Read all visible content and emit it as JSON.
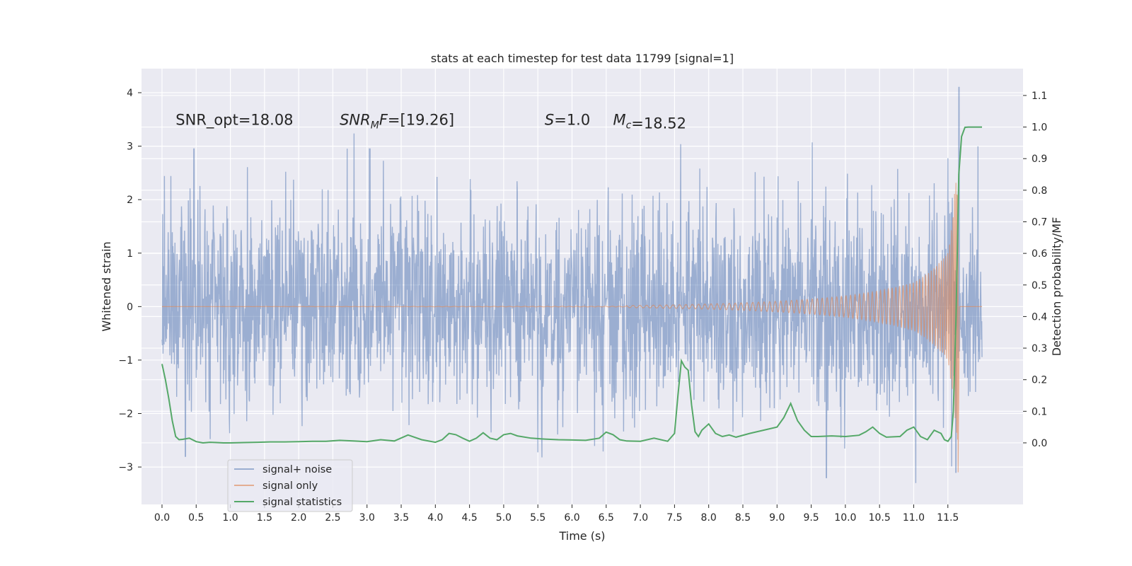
{
  "chart_data": {
    "type": "line",
    "title": "stats at each timestep for test data 11799 [signal=1]",
    "xlabel": "Time (s)",
    "ylabel": "Whitened strain",
    "y2label": "Detection probability/MF",
    "xlim": [
      -0.3,
      12.6
    ],
    "ylim": [
      -3.7,
      4.45
    ],
    "y2lim": [
      -0.195,
      1.185
    ],
    "x_ticks": [
      "0.0",
      "0.5",
      "1.0",
      "1.5",
      "2.0",
      "2.5",
      "3.0",
      "3.5",
      "4.0",
      "4.5",
      "5.0",
      "5.5",
      "6.0",
      "6.5",
      "7.0",
      "7.5",
      "8.0",
      "8.5",
      "9.0",
      "9.5",
      "10.0",
      "10.5",
      "11.0",
      "11.5"
    ],
    "y_ticks": [
      "−3",
      "−2",
      "−1",
      "0",
      "1",
      "2",
      "3",
      "4"
    ],
    "y2_ticks": [
      "0.0",
      "0.1",
      "0.2",
      "0.3",
      "0.4",
      "0.5",
      "0.6",
      "0.7",
      "0.8",
      "0.9",
      "1.0",
      "1.1"
    ],
    "grid": true,
    "legend_position": "lower-left",
    "annotations": [
      {
        "id": "snr_opt",
        "prefix": "SNR_opt",
        "value": "=18.08",
        "x": 0.2,
        "y": 3.4
      },
      {
        "id": "snr_mf",
        "prefix": "SNR",
        "sub": "M",
        "suffix": "F",
        "value": "=[19.26]",
        "x": 2.6,
        "y": 3.4
      },
      {
        "id": "s",
        "prefix": "S",
        "value": "=1.0",
        "x": 5.6,
        "y": 3.4
      },
      {
        "id": "mc",
        "prefix": "M",
        "sub": "c",
        "value": "=18.52",
        "x": 6.6,
        "y": 3.4
      }
    ],
    "series": [
      {
        "name": "signal+ noise",
        "color": "#4c72b0",
        "opacity": 0.5,
        "axis": "left",
        "x_start": 0.0,
        "x_end": 12.0,
        "envelope_sigma": 1.0,
        "notable_peaks": [
          [
            0.47,
            2.95
          ],
          [
            3.04,
            2.95
          ],
          [
            11.66,
            4.1
          ],
          [
            11.62,
            -3.1
          ],
          [
            9.72,
            -3.2
          ],
          [
            0.34,
            -2.8
          ]
        ]
      },
      {
        "name": "signal only",
        "color": "#dd8452",
        "opacity": 0.6,
        "axis": "left",
        "x_start": 0.0,
        "x_end": 12.0,
        "chirp_end": 11.65,
        "amplitude": [
          [
            6.8,
            0.02
          ],
          [
            8.0,
            0.05
          ],
          [
            9.0,
            0.1
          ],
          [
            10.0,
            0.2
          ],
          [
            11.0,
            0.45
          ],
          [
            11.5,
            1.0
          ],
          [
            11.62,
            2.5
          ]
        ]
      },
      {
        "name": "signal statistics",
        "color": "#55a868",
        "opacity": 1.0,
        "axis": "right",
        "x": [
          0.0,
          0.05,
          0.1,
          0.15,
          0.2,
          0.25,
          0.3,
          0.4,
          0.5,
          0.6,
          0.7,
          0.8,
          0.9,
          1.0,
          1.2,
          1.4,
          1.6,
          1.8,
          2.0,
          2.2,
          2.4,
          2.6,
          2.8,
          3.0,
          3.2,
          3.4,
          3.6,
          3.8,
          4.0,
          4.1,
          4.2,
          4.3,
          4.4,
          4.5,
          4.6,
          4.7,
          4.8,
          4.9,
          5.0,
          5.1,
          5.2,
          5.4,
          5.6,
          5.8,
          6.0,
          6.2,
          6.4,
          6.5,
          6.6,
          6.7,
          6.8,
          7.0,
          7.2,
          7.4,
          7.5,
          7.55,
          7.6,
          7.65,
          7.7,
          7.75,
          7.8,
          7.85,
          7.9,
          8.0,
          8.1,
          8.2,
          8.3,
          8.4,
          8.6,
          8.8,
          9.0,
          9.1,
          9.2,
          9.3,
          9.4,
          9.5,
          9.6,
          9.8,
          10.0,
          10.2,
          10.3,
          10.4,
          10.5,
          10.6,
          10.8,
          10.9,
          11.0,
          11.1,
          11.2,
          11.3,
          11.4,
          11.45,
          11.5,
          11.55,
          11.58,
          11.62,
          11.66,
          11.7,
          11.75,
          11.8,
          11.85,
          11.9,
          11.95,
          12.0
        ],
        "y": [
          0.25,
          0.2,
          0.14,
          0.07,
          0.02,
          0.01,
          0.011,
          0.015,
          0.004,
          0.0,
          0.002,
          0.001,
          0.0,
          0.0,
          0.001,
          0.002,
          0.003,
          0.003,
          0.004,
          0.005,
          0.005,
          0.008,
          0.006,
          0.004,
          0.01,
          0.006,
          0.025,
          0.01,
          0.002,
          0.01,
          0.03,
          0.026,
          0.015,
          0.005,
          0.015,
          0.032,
          0.015,
          0.01,
          0.026,
          0.03,
          0.022,
          0.015,
          0.012,
          0.01,
          0.009,
          0.008,
          0.015,
          0.034,
          0.026,
          0.01,
          0.006,
          0.005,
          0.015,
          0.005,
          0.03,
          0.15,
          0.26,
          0.24,
          0.23,
          0.12,
          0.035,
          0.02,
          0.04,
          0.06,
          0.03,
          0.02,
          0.025,
          0.018,
          0.03,
          0.04,
          0.05,
          0.08,
          0.125,
          0.07,
          0.04,
          0.02,
          0.02,
          0.022,
          0.02,
          0.024,
          0.035,
          0.05,
          0.03,
          0.018,
          0.02,
          0.04,
          0.05,
          0.02,
          0.01,
          0.04,
          0.03,
          0.01,
          0.005,
          0.02,
          0.1,
          0.4,
          0.85,
          0.97,
          0.999,
          1.0,
          1.0,
          1.0,
          1.0,
          1.0
        ]
      }
    ]
  }
}
